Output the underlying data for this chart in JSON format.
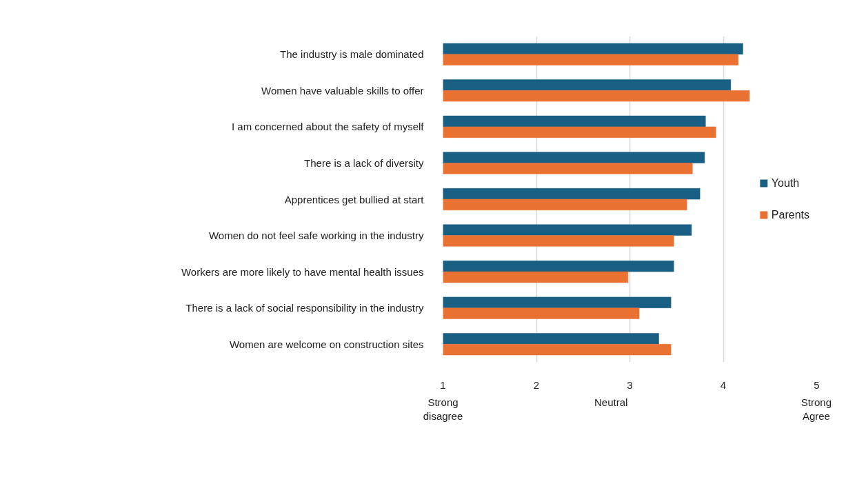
{
  "chart_data": {
    "type": "bar",
    "orientation": "horizontal",
    "categories": [
      "The industry is male dominated",
      "Women have valuable skills to offer",
      "I am concerned about the safety of myself",
      "There is a lack of diversity",
      "Apprentices get bullied at start",
      "Women do not feel safe working in the industry",
      "Workers are more likely to have mental health issues",
      "There is a lack of social responsibility in the industry",
      "Women are welcome on construction sites"
    ],
    "series": [
      {
        "name": "Youth",
        "color": "#195e83",
        "values": [
          4.21,
          4.08,
          3.81,
          3.8,
          3.75,
          3.66,
          3.47,
          3.44,
          3.31
        ]
      },
      {
        "name": "Parents",
        "color": "#e97132",
        "values": [
          4.16,
          4.28,
          3.92,
          3.67,
          3.61,
          3.47,
          2.98,
          3.1,
          3.44
        ]
      }
    ],
    "xlim": [
      1,
      5
    ],
    "xticks": [
      1,
      2,
      3,
      4,
      5
    ],
    "grid": "x",
    "legend": "right",
    "annotations": [
      "Strong\ndisagree",
      "Neutral",
      "Strong\nAgree"
    ]
  }
}
